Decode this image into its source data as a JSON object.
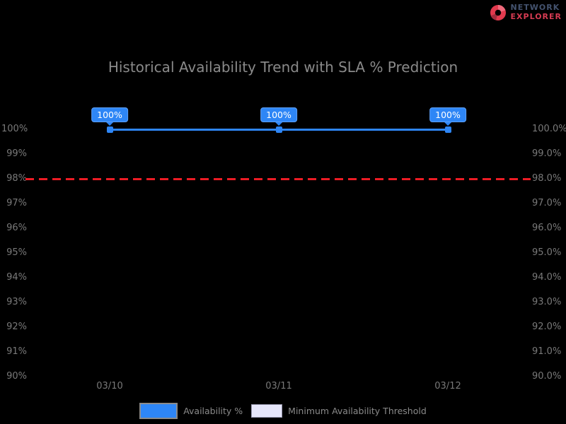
{
  "logo": {
    "brand_line1": "NETWORK",
    "brand_line2": "EXPLORER",
    "icon": "donut-chart-icon",
    "colors": {
      "line1": "#44536f",
      "line2": "#d63b52",
      "icon": "#e23a4e"
    }
  },
  "chart_data": {
    "type": "line",
    "title": "Historical Availability Trend with SLA % Prediction",
    "categories": [
      "03/10",
      "03/11",
      "03/12"
    ],
    "series": [
      {
        "name": "Availability %",
        "values": [
          100,
          100,
          100
        ],
        "point_labels": [
          "100%",
          "100%",
          "100%"
        ],
        "color": "#2e86f6",
        "marker": "square"
      }
    ],
    "threshold": {
      "name": "Minimum Availability Threshold",
      "value": 98,
      "color": "#ec1c24",
      "style": "dashed"
    },
    "y_axis_left_ticks": [
      "100%",
      "99%",
      "98%",
      "97%",
      "96%",
      "95%",
      "94%",
      "93%",
      "92%",
      "91%",
      "90%"
    ],
    "y_axis_right_ticks": [
      "100.0%",
      "99.0%",
      "98.0%",
      "97.0%",
      "96.0%",
      "95.0%",
      "94.0%",
      "93.0%",
      "92.0%",
      "91.0%",
      "90.0%"
    ],
    "ylim": [
      90,
      100
    ],
    "grid": false,
    "legend_position": "bottom",
    "background": "#000000",
    "text_color": "#8a8a8a"
  },
  "legend": {
    "items": [
      {
        "label": "Availability %",
        "swatch_color": "#2e86f6",
        "selected": true
      },
      {
        "label": "Minimum Availability Threshold",
        "swatch_color": "#e6e6fa",
        "selected": false
      }
    ]
  }
}
